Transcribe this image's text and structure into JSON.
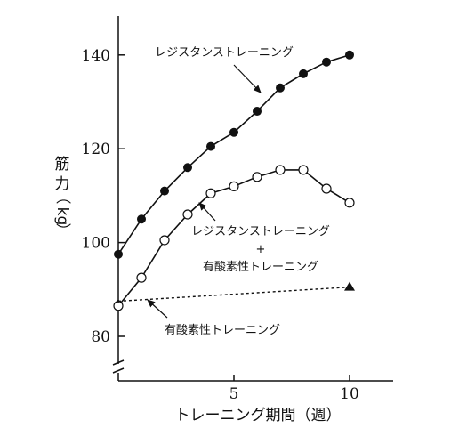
{
  "chart_data": {
    "type": "line",
    "title": "",
    "xlabel": "トレーニング期間（週）",
    "ylabel": "筋力（kg）",
    "xlim": [
      0,
      11.5
    ],
    "ylim": [
      75,
      148
    ],
    "y_axis_break": true,
    "xticks": [
      5,
      10
    ],
    "yticks": [
      80,
      100,
      120,
      140
    ],
    "grid": false,
    "series": [
      {
        "name": "レジスタンストレーニング",
        "marker": "filled-circle",
        "line": "solid",
        "x": [
          0,
          1,
          2,
          3,
          4,
          5,
          6,
          7,
          8,
          9,
          10
        ],
        "y": [
          97.5,
          105,
          111,
          116,
          120.5,
          123.5,
          128,
          133,
          136,
          138.5,
          140
        ]
      },
      {
        "name": "レジスタンストレーニング + 有酸素性トレーニング",
        "marker": "open-circle",
        "line": "solid",
        "x": [
          0,
          1,
          2,
          3,
          4,
          5,
          6,
          7,
          8,
          9,
          10
        ],
        "y": [
          86.5,
          92.5,
          100.5,
          106,
          110.5,
          112,
          114,
          115.5,
          115.5,
          111.5,
          108.5
        ]
      },
      {
        "name": "有酸素性トレーニング",
        "marker": "filled-triangle",
        "line": "dashed",
        "x": [
          0,
          10
        ],
        "y": [
          87.5,
          90.5
        ]
      }
    ],
    "annotations": [
      {
        "label_lines": [
          "レジスタンストレーニング"
        ],
        "points_to_series": 0
      },
      {
        "label_lines": [
          "レジスタンストレーニング",
          "+",
          "有酸素性トレーニング"
        ],
        "points_to_series": 1
      },
      {
        "label_lines": [
          "有酸素性トレーニング"
        ],
        "points_to_series": 2
      }
    ]
  }
}
